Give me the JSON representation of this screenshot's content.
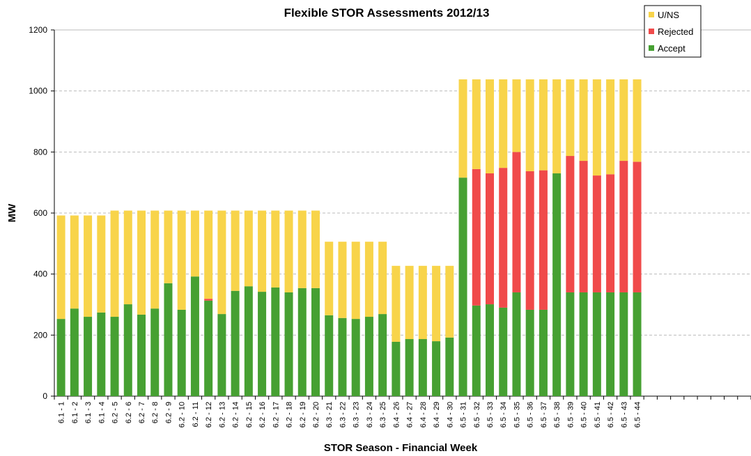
{
  "chart_data": {
    "type": "stacked_bar",
    "title": "Flexible STOR Assessments 2012/13",
    "x_label": "STOR Season - Financial Week",
    "y_label": "MW",
    "categories": [
      "6.1 - 1",
      "6.1 - 2",
      "6.1 - 3",
      "6.1 - 4",
      "6.2 - 5",
      "6.2 - 6",
      "6.2 - 7",
      "6.2 - 8",
      "6.2 - 9",
      "6.2 - 10",
      "6.2 - 11",
      "6.2 - 12",
      "6.2 - 13",
      "6.2 - 14",
      "6.2 - 15",
      "6.2 - 16",
      "6.2 - 17",
      "6.2 - 18",
      "6.2 - 19",
      "6.2 - 20",
      "6.3 - 21",
      "6.3 - 22",
      "6.3 - 23",
      "6.3 - 24",
      "6.3 - 25",
      "6.4 - 26",
      "6.4 - 27",
      "6.4 - 28",
      "6.4 - 29",
      "6.4 - 30",
      "6.5 - 31",
      "6.5 - 32",
      "6.5 - 33",
      "6.5 - 34",
      "6.5 - 35",
      "6.5 - 36",
      "6.5 - 37",
      "6.5 - 38",
      "6.5 - 39",
      "6.5 - 40",
      "6.5 - 41",
      "6.5 - 42",
      "6.5 - 43",
      "6.5 - 44",
      null,
      null,
      null,
      null,
      null,
      null,
      null,
      null
    ],
    "series": [
      {
        "name": "Accept",
        "color": "#46a032",
        "values": [
          253,
          287,
          260,
          274,
          260,
          301,
          267,
          287,
          370,
          283,
          392,
          313,
          269,
          345,
          360,
          342,
          356,
          340,
          354,
          354,
          265,
          256,
          253,
          260,
          269,
          178,
          187,
          187,
          180,
          192,
          716,
          297,
          301,
          290,
          340,
          283,
          283,
          730,
          340,
          340,
          340,
          340,
          340,
          340,
          null,
          null,
          null,
          null,
          null,
          null,
          null,
          null
        ]
      },
      {
        "name": "Rejected",
        "color": "#f04a4a",
        "values": [
          0,
          0,
          0,
          0,
          0,
          0,
          0,
          0,
          0,
          0,
          0,
          6,
          0,
          0,
          0,
          0,
          0,
          0,
          0,
          0,
          0,
          0,
          0,
          0,
          0,
          0,
          0,
          0,
          0,
          0,
          0,
          447,
          429,
          458,
          460,
          454,
          457,
          0,
          447,
          431,
          383,
          387,
          431,
          428,
          null,
          null,
          null,
          null,
          null,
          null,
          null,
          null
        ]
      },
      {
        "name": "U/NS",
        "color": "#f8d44a",
        "values": [
          339,
          305,
          332,
          318,
          348,
          307,
          341,
          321,
          238,
          325,
          216,
          289,
          339,
          263,
          248,
          266,
          252,
          268,
          254,
          254,
          241,
          250,
          253,
          246,
          237,
          249,
          240,
          240,
          247,
          235,
          322,
          294,
          308,
          290,
          238,
          301,
          298,
          308,
          251,
          267,
          315,
          311,
          267,
          270,
          null,
          null,
          null,
          null,
          null,
          null,
          null,
          null
        ]
      }
    ],
    "ylim": [
      0,
      1200
    ],
    "yticks": [
      0,
      200,
      400,
      600,
      800,
      1000,
      1200
    ],
    "grid": true,
    "legend": "upper right"
  }
}
